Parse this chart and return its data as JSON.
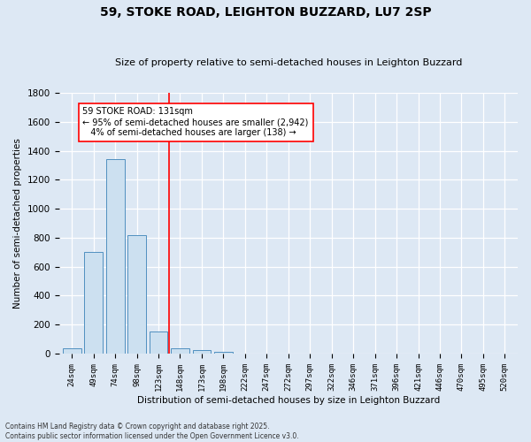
{
  "title": "59, STOKE ROAD, LEIGHTON BUZZARD, LU7 2SP",
  "subtitle": "Size of property relative to semi-detached houses in Leighton Buzzard",
  "xlabel": "Distribution of semi-detached houses by size in Leighton Buzzard",
  "ylabel": "Number of semi-detached properties",
  "footnote": "Contains HM Land Registry data © Crown copyright and database right 2025.\nContains public sector information licensed under the Open Government Licence v3.0.",
  "bar_labels": [
    "24sqm",
    "49sqm",
    "74sqm",
    "98sqm",
    "123sqm",
    "148sqm",
    "173sqm",
    "198sqm",
    "222sqm",
    "247sqm",
    "272sqm",
    "297sqm",
    "322sqm",
    "346sqm",
    "371sqm",
    "396sqm",
    "421sqm",
    "446sqm",
    "470sqm",
    "495sqm",
    "520sqm"
  ],
  "bar_values": [
    38,
    700,
    1340,
    820,
    150,
    35,
    22,
    15,
    0,
    0,
    0,
    0,
    0,
    0,
    0,
    0,
    0,
    0,
    0,
    0,
    0
  ],
  "bar_color": "#cce0f0",
  "bar_edgecolor": "#5090c0",
  "background_color": "#dde8f4",
  "grid_color": "#ffffff",
  "vline_x_idx": 4.5,
  "vline_color": "red",
  "annotation_line1": "59 STOKE ROAD: 131sqm",
  "annotation_line2": "← 95% of semi-detached houses are smaller (2,942)",
  "annotation_line3": "   4% of semi-detached houses are larger (138) →",
  "ylim": [
    0,
    1800
  ],
  "yticks": [
    0,
    200,
    400,
    600,
    800,
    1000,
    1200,
    1400,
    1600,
    1800
  ]
}
